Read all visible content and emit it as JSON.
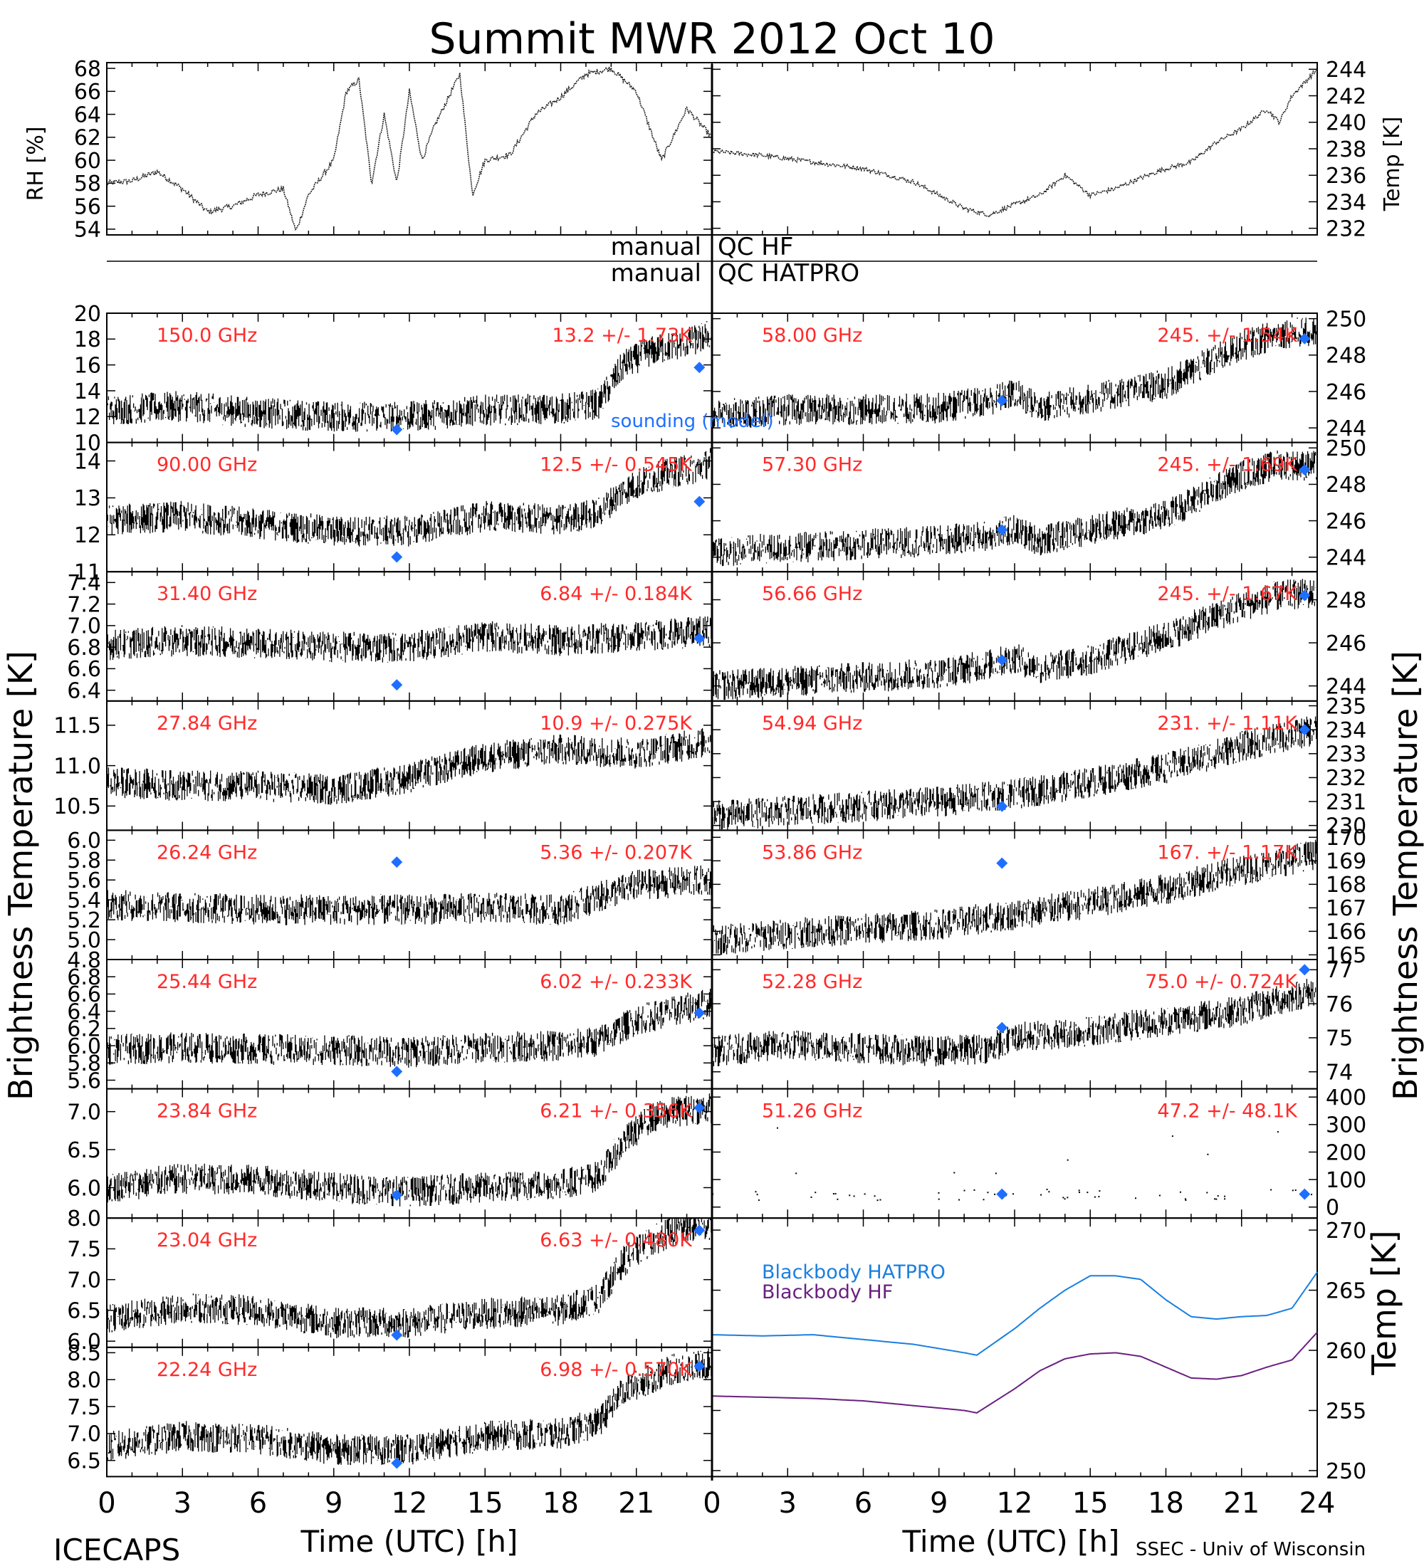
{
  "title": "Summit MWR 2012 Oct 10",
  "footer": {
    "left": "ICECAPS",
    "right": "SSEC - Univ of Wisconsin",
    "xlabel_left": "Time (UTC) [h]",
    "xlabel_right": "Time (UTC) [h]",
    "xticks_left": [
      "0",
      "3",
      "6",
      "9",
      "12",
      "15",
      "18",
      "21"
    ],
    "xticks_right": [
      "0",
      "3",
      "6",
      "9",
      "12",
      "15",
      "18",
      "21",
      "24"
    ]
  },
  "qc": {
    "hf_label_a": "manual",
    "hf_label_b": "QC HF",
    "hatpro_label_a": "manual",
    "hatpro_label_b": "QC HATPRO"
  },
  "axis_labels": {
    "rh": "RH [%]",
    "temp": "Temp [K]",
    "tb_left": "Brightness Temperature [K]",
    "tb_right": "Brightness Temperature [K]",
    "bb_temp": "Temp [K]"
  },
  "sounding_label": "sounding (model)",
  "colors": {
    "stats": "#ff2a2a",
    "sounding": "#1f6fff",
    "bb_hatpro": "#1a7fe0",
    "bb_hf": "#6a2080",
    "data": "#000000"
  },
  "chart_data": [
    {
      "type": "line",
      "id": "rh",
      "ylabel": "RH [%]",
      "ylim": [
        53.5,
        68.5
      ],
      "yticks": [
        "54",
        "56",
        "58",
        "60",
        "62",
        "64",
        "66",
        "68"
      ],
      "x": [
        0,
        1,
        2,
        3,
        4,
        5,
        6,
        7,
        7.5,
        8,
        9,
        9.5,
        10,
        10.5,
        11,
        11.5,
        12,
        12.5,
        13,
        14,
        14.5,
        15,
        16,
        17,
        18,
        19,
        20,
        21,
        22,
        23,
        24
      ],
      "values": [
        58,
        58.2,
        59,
        57.5,
        55.5,
        56,
        57,
        57.5,
        53.8,
        57,
        60,
        66,
        67,
        58,
        64,
        58,
        66,
        60,
        63,
        67.5,
        57,
        60,
        60.5,
        64,
        65.5,
        67.5,
        68,
        66,
        60,
        64.5,
        62
      ]
    },
    {
      "type": "line",
      "id": "temp",
      "ylabel": "Temp [K]",
      "ylim": [
        231.5,
        244.5
      ],
      "yticks": [
        "232",
        "234",
        "236",
        "238",
        "240",
        "242",
        "244"
      ],
      "x": [
        0,
        2,
        4,
        6,
        8,
        9,
        10,
        11,
        12,
        13,
        14,
        15,
        16,
        17,
        18,
        19,
        20,
        21,
        22,
        22.5,
        23,
        24
      ],
      "values": [
        237.8,
        237.5,
        237,
        236.5,
        235.5,
        234.5,
        233.5,
        233,
        233.8,
        234.5,
        236,
        234.5,
        235,
        235.8,
        236.5,
        237,
        238.5,
        239.5,
        241,
        240,
        242,
        244
      ]
    },
    {
      "type": "scatter",
      "side": "left",
      "freq": "150.0 GHz",
      "stats": "13.2 +/- 1.73K",
      "ylim": [
        10,
        20
      ],
      "yticks": [
        "10",
        "12",
        "14",
        "16",
        "18",
        "20"
      ],
      "x": [
        0,
        3,
        6,
        9,
        12,
        15,
        18,
        19.5,
        20.5,
        21.5,
        22.5,
        23.5,
        24
      ],
      "values": [
        12.5,
        12.8,
        12.3,
        12.0,
        12.0,
        12.5,
        12.6,
        13.0,
        16.0,
        17.0,
        17.5,
        18.0,
        18.5
      ],
      "sounding": [
        {
          "x": 11.5,
          "y": 11.0
        },
        {
          "x": 23.5,
          "y": 15.8
        }
      ]
    },
    {
      "type": "scatter",
      "side": "left",
      "freq": "90.00 GHz",
      "stats": "12.5 +/- 0.545K",
      "ylim": [
        11,
        14.5
      ],
      "yticks": [
        "11",
        "12",
        "13",
        "14"
      ],
      "x": [
        0,
        3,
        6,
        9,
        12,
        15,
        18,
        19.5,
        20.5,
        21.5,
        22.5,
        23.5,
        24
      ],
      "values": [
        12.4,
        12.5,
        12.3,
        12.1,
        12.1,
        12.5,
        12.4,
        12.6,
        13.2,
        13.5,
        13.7,
        13.8,
        14.0
      ],
      "sounding": [
        {
          "x": 11.5,
          "y": 11.4
        },
        {
          "x": 23.5,
          "y": 12.9
        }
      ]
    },
    {
      "type": "scatter",
      "side": "left",
      "freq": "31.40 GHz",
      "stats": "6.84 +/- 0.184K",
      "ylim": [
        6.3,
        7.5
      ],
      "yticks": [
        "6.4",
        "6.6",
        "6.8",
        "7.0",
        "7.2",
        "7.4"
      ],
      "x": [
        0,
        3,
        6,
        9,
        12,
        15,
        18,
        21,
        24
      ],
      "values": [
        6.82,
        6.86,
        6.84,
        6.8,
        6.8,
        6.9,
        6.86,
        6.9,
        6.95
      ],
      "sounding": [
        {
          "x": 11.5,
          "y": 6.45
        },
        {
          "x": 23.5,
          "y": 6.88
        }
      ]
    },
    {
      "type": "scatter",
      "side": "left",
      "freq": "27.84 GHz",
      "stats": "10.9 +/- 0.275K",
      "ylim": [
        10.2,
        11.8
      ],
      "yticks": [
        "10.5",
        "11.0",
        "11.5"
      ],
      "x": [
        0,
        3,
        6,
        9,
        12,
        15,
        18,
        21,
        24
      ],
      "values": [
        10.8,
        10.75,
        10.75,
        10.7,
        10.85,
        11.1,
        11.2,
        11.15,
        11.3
      ],
      "sounding": []
    },
    {
      "type": "scatter",
      "side": "left",
      "freq": "26.24 GHz",
      "stats": "5.36 +/- 0.207K",
      "ylim": [
        4.8,
        6.1
      ],
      "yticks": [
        "4.8",
        "5.0",
        "5.2",
        "5.4",
        "5.6",
        "5.8",
        "6.0"
      ],
      "x": [
        0,
        3,
        6,
        9,
        12,
        15,
        18,
        21,
        24
      ],
      "values": [
        5.35,
        5.32,
        5.3,
        5.3,
        5.3,
        5.32,
        5.3,
        5.55,
        5.6
      ],
      "sounding": [
        {
          "x": 11.5,
          "y": 5.78
        }
      ]
    },
    {
      "type": "scatter",
      "side": "left",
      "freq": "25.44 GHz",
      "stats": "6.02 +/- 0.233K",
      "ylim": [
        5.5,
        7.0
      ],
      "yticks": [
        "5.6",
        "5.8",
        "6.0",
        "6.2",
        "6.4",
        "6.6",
        "6.8"
      ],
      "x": [
        0,
        3,
        6,
        9,
        12,
        15,
        18,
        19.5,
        21,
        22.5,
        24
      ],
      "values": [
        5.95,
        5.98,
        5.96,
        5.95,
        5.92,
        5.98,
        6.0,
        6.05,
        6.3,
        6.4,
        6.5
      ],
      "sounding": [
        {
          "x": 11.5,
          "y": 5.7
        },
        {
          "x": 23.5,
          "y": 6.38
        }
      ]
    },
    {
      "type": "scatter",
      "side": "left",
      "freq": "23.84 GHz",
      "stats": "6.21 +/- 0.356K",
      "ylim": [
        5.6,
        7.3
      ],
      "yticks": [
        "6.0",
        "6.5",
        "7.0"
      ],
      "x": [
        0,
        3,
        6,
        9,
        12,
        15,
        18,
        19.5,
        20.5,
        21.5,
        22.5,
        24
      ],
      "values": [
        6.0,
        6.12,
        6.1,
        6.0,
        5.95,
        6.0,
        6.05,
        6.15,
        6.6,
        6.9,
        7.0,
        7.05
      ],
      "sounding": [
        {
          "x": 11.5,
          "y": 5.9
        },
        {
          "x": 23.5,
          "y": 7.05
        }
      ]
    },
    {
      "type": "scatter",
      "side": "left",
      "freq": "23.04 GHz",
      "stats": "6.63 +/- 0.480K",
      "ylim": [
        5.9,
        8.0
      ],
      "yticks": [
        "6.0",
        "6.5",
        "7.0",
        "7.5",
        "8.0"
      ],
      "x": [
        0,
        3,
        6,
        9,
        12,
        15,
        18,
        19.5,
        20.5,
        21.5,
        22.5,
        24
      ],
      "values": [
        6.35,
        6.55,
        6.5,
        6.3,
        6.3,
        6.45,
        6.5,
        6.7,
        7.3,
        7.6,
        7.8,
        7.9
      ],
      "sounding": [
        {
          "x": 11.5,
          "y": 6.1
        },
        {
          "x": 23.5,
          "y": 7.8
        }
      ]
    },
    {
      "type": "scatter",
      "side": "left",
      "freq": "22.24 GHz",
      "stats": "6.98 +/- 0.570K",
      "ylim": [
        6.2,
        8.6
      ],
      "yticks": [
        "6.5",
        "7.0",
        "7.5",
        "8.0",
        "8.5"
      ],
      "x": [
        0,
        3,
        6,
        9,
        12,
        15,
        18,
        19.5,
        20.5,
        21.5,
        22.5,
        24
      ],
      "values": [
        6.75,
        6.95,
        6.9,
        6.7,
        6.7,
        6.95,
        7.0,
        7.2,
        7.8,
        8.0,
        8.2,
        8.3
      ],
      "sounding": [
        {
          "x": 11.5,
          "y": 6.45
        },
        {
          "x": 23.5,
          "y": 8.25
        }
      ]
    },
    {
      "type": "scatter",
      "side": "right",
      "freq": "58.00 GHz",
      "stats": "245. +/- 1.54K",
      "ylim": [
        243.2,
        250.3
      ],
      "yticks": [
        "244",
        "246",
        "248",
        "250"
      ],
      "x": [
        0,
        3,
        6,
        9,
        11,
        12,
        13,
        15,
        18,
        21,
        22.5,
        24
      ],
      "values": [
        244.7,
        245,
        245,
        245.1,
        245.5,
        245.9,
        245.1,
        245.6,
        246.4,
        248.5,
        249.2,
        249.3
      ],
      "sounding": [
        {
          "x": 11.5,
          "y": 245.5
        },
        {
          "x": 23.5,
          "y": 248.9
        }
      ]
    },
    {
      "type": "scatter",
      "side": "right",
      "freq": "57.30 GHz",
      "stats": "245. +/- 1.69K",
      "ylim": [
        243.2,
        250.3
      ],
      "yticks": [
        "244",
        "246",
        "248",
        "250"
      ],
      "x": [
        0,
        3,
        6,
        9,
        11,
        12,
        13,
        15,
        18,
        21,
        22.5,
        24
      ],
      "values": [
        244.3,
        244.5,
        244.7,
        244.9,
        245.2,
        245.5,
        244.9,
        245.5,
        246.3,
        248.5,
        249.1,
        249.0
      ],
      "sounding": [
        {
          "x": 11.5,
          "y": 245.5
        },
        {
          "x": 23.5,
          "y": 248.8
        }
      ]
    },
    {
      "type": "scatter",
      "side": "right",
      "freq": "56.66 GHz",
      "stats": "245. +/- 1.67K",
      "ylim": [
        243.3,
        249.3
      ],
      "yticks": [
        "244",
        "246",
        "248"
      ],
      "x": [
        0,
        3,
        6,
        9,
        11,
        12,
        13,
        15,
        18,
        21,
        22.5,
        24
      ],
      "values": [
        244,
        244.2,
        244.4,
        244.6,
        245,
        245.3,
        244.8,
        245.2,
        246.3,
        247.7,
        248.2,
        248.3
      ],
      "sounding": [
        {
          "x": 11.5,
          "y": 245.2
        },
        {
          "x": 23.5,
          "y": 248.2
        }
      ]
    },
    {
      "type": "scatter",
      "side": "right",
      "freq": "54.94 GHz",
      "stats": "231. +/- 1.11K",
      "ylim": [
        229.8,
        235.2
      ],
      "yticks": [
        "230",
        "231",
        "232",
        "233",
        "234",
        "235"
      ],
      "x": [
        0,
        3,
        6,
        9,
        12,
        15,
        18,
        21,
        24
      ],
      "values": [
        230.4,
        230.6,
        230.8,
        231.0,
        231.3,
        231.8,
        232.4,
        233.3,
        234.0
      ],
      "sounding": [
        {
          "x": 11.5,
          "y": 230.8
        },
        {
          "x": 23.5,
          "y": 234.0
        }
      ]
    },
    {
      "type": "scatter",
      "side": "right",
      "freq": "53.86 GHz",
      "stats": "167. +/- 1.17K",
      "ylim": [
        164.8,
        170.3
      ],
      "yticks": [
        "165",
        "166",
        "167",
        "168",
        "169",
        "170"
      ],
      "x": [
        0,
        3,
        6,
        9,
        12,
        15,
        18,
        21,
        24
      ],
      "values": [
        165.6,
        165.9,
        166.1,
        166.3,
        166.7,
        167.2,
        167.8,
        168.6,
        169.3
      ],
      "sounding": [
        {
          "x": 11.5,
          "y": 168.9
        }
      ]
    },
    {
      "type": "scatter",
      "side": "right",
      "freq": "52.28 GHz",
      "stats": "75.0 +/- 0.724K",
      "ylim": [
        73.5,
        77.3
      ],
      "yticks": [
        "74",
        "75",
        "76",
        "77"
      ],
      "x": [
        0,
        3,
        6,
        9,
        11,
        12,
        15,
        18,
        21,
        24
      ],
      "values": [
        74.6,
        74.8,
        74.7,
        74.6,
        74.7,
        75.0,
        75.2,
        75.5,
        75.8,
        76.4
      ],
      "sounding": [
        {
          "x": 11.5,
          "y": 75.3
        },
        {
          "x": 23.5,
          "y": 77.0
        }
      ]
    },
    {
      "type": "scatter",
      "side": "right",
      "freq": "51.26 GHz",
      "stats": "47.2 +/- 48.1K",
      "ylim": [
        -40,
        430
      ],
      "yticks": [
        "0",
        "100",
        "200",
        "300",
        "400"
      ],
      "x": [
        0,
        24
      ],
      "values": [
        47,
        47
      ],
      "sounding": [
        {
          "x": 11.5,
          "y": 47
        },
        {
          "x": 23.5,
          "y": 47
        }
      ]
    },
    {
      "type": "line",
      "id": "blackbody",
      "ylabel": "Temp [K]",
      "ylim": [
        249.5,
        271
      ],
      "yticks": [
        "250",
        "255",
        "260",
        "265",
        "270"
      ],
      "x": [
        0,
        2,
        4,
        6,
        8,
        10,
        10.5,
        12,
        13,
        14,
        15,
        16,
        17,
        18,
        19,
        20,
        21,
        22,
        23,
        24
      ],
      "series": [
        {
          "name": "Blackbody HATPRO",
          "values": [
            261.3,
            261.2,
            261.3,
            260.9,
            260.5,
            259.8,
            259.6,
            261.8,
            263.5,
            265,
            266.2,
            266.2,
            265.9,
            264.2,
            262.8,
            262.6,
            262.8,
            262.9,
            263.5,
            266.5
          ]
        },
        {
          "name": "Blackbody HF",
          "values": [
            256.2,
            256.1,
            256.0,
            255.8,
            255.4,
            255.0,
            254.8,
            256.8,
            258.3,
            259.3,
            259.7,
            259.8,
            259.5,
            258.6,
            257.7,
            257.6,
            257.9,
            258.6,
            259.2,
            261.5
          ]
        }
      ]
    }
  ]
}
